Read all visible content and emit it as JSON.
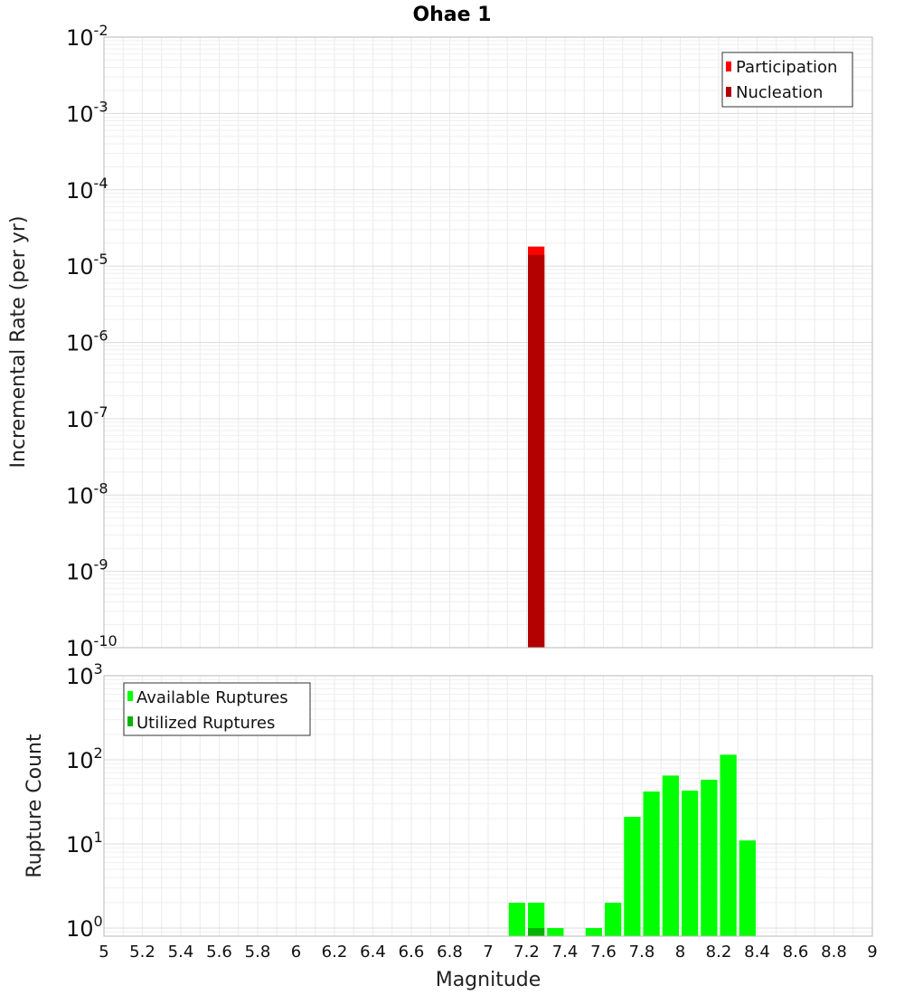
{
  "chart_data": [
    {
      "type": "bar",
      "title": "Ohae 1",
      "xlabel": "",
      "ylabel": "Incremental Rate (per yr)",
      "y_scale": "log",
      "xlim": [
        5,
        9
      ],
      "ylim": [
        1e-10,
        0.01
      ],
      "y_ticks": [
        {
          "base": "10",
          "exp": "-10"
        },
        {
          "base": "10",
          "exp": "-9"
        },
        {
          "base": "10",
          "exp": "-8"
        },
        {
          "base": "10",
          "exp": "-7"
        },
        {
          "base": "10",
          "exp": "-6"
        },
        {
          "base": "10",
          "exp": "-5"
        },
        {
          "base": "10",
          "exp": "-4"
        },
        {
          "base": "10",
          "exp": "-3"
        },
        {
          "base": "10",
          "exp": "-2"
        }
      ],
      "legend_position": "top-right",
      "grid": true,
      "series": [
        {
          "name": "Participation",
          "color": "#ff0000",
          "x": [
            7.25
          ],
          "values": [
            1.8e-05
          ]
        },
        {
          "name": "Nucleation",
          "color": "#b30000",
          "x": [
            7.25
          ],
          "values": [
            1.4e-05
          ]
        }
      ]
    },
    {
      "type": "bar",
      "xlabel": "Magnitude",
      "ylabel": "Rupture Count",
      "y_scale": "log",
      "xlim": [
        5,
        9
      ],
      "ylim": [
        0.8,
        1000
      ],
      "x_ticks": [
        "5",
        "5.2",
        "5.4",
        "5.6",
        "5.8",
        "6",
        "6.2",
        "6.4",
        "6.6",
        "6.8",
        "7",
        "7.2",
        "7.4",
        "7.6",
        "7.8",
        "8",
        "8.2",
        "8.4",
        "8.6",
        "8.8",
        "9"
      ],
      "y_ticks": [
        {
          "base": "10",
          "exp": "0"
        },
        {
          "base": "10",
          "exp": "1"
        },
        {
          "base": "10",
          "exp": "2"
        },
        {
          "base": "10",
          "exp": "3"
        }
      ],
      "legend_position": "top-left",
      "grid": true,
      "series": [
        {
          "name": "Available Ruptures",
          "color": "#00ff00",
          "x": [
            7.15,
            7.25,
            7.35,
            7.55,
            7.65,
            7.75,
            7.85,
            7.95,
            8.05,
            8.15,
            8.25,
            8.35
          ],
          "values": [
            2,
            2,
            1,
            1,
            2,
            21,
            42,
            65,
            43,
            58,
            115,
            11
          ]
        },
        {
          "name": "Utilized Ruptures",
          "color": "#00b300",
          "x": [
            7.25
          ],
          "values": [
            1
          ]
        }
      ]
    }
  ]
}
